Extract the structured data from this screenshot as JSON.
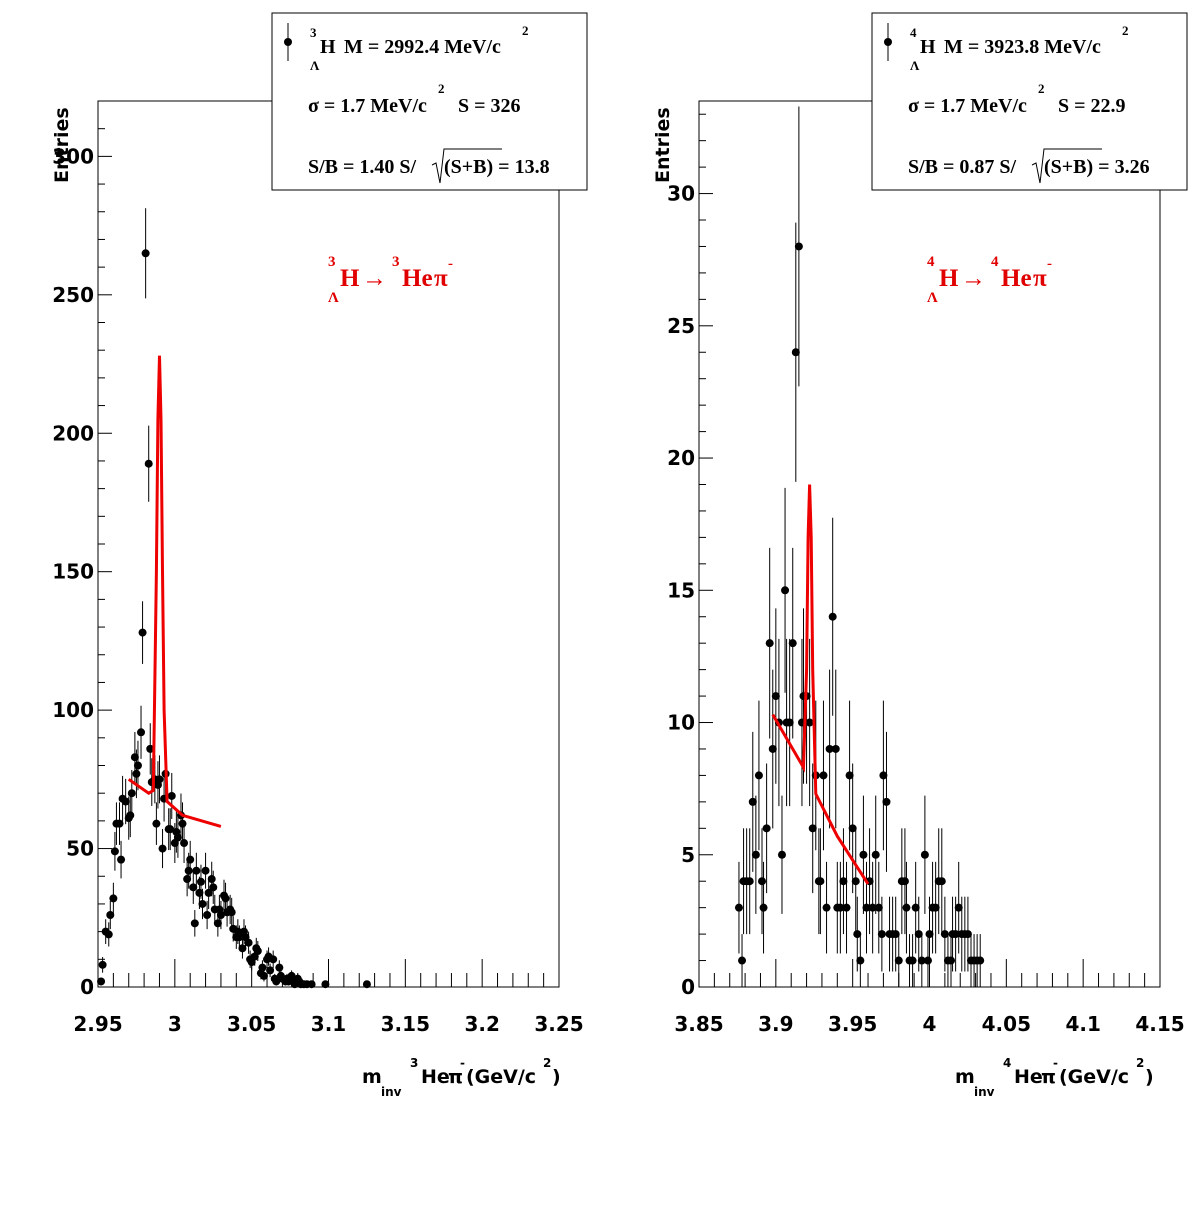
{
  "chart_data": [
    {
      "type": "scatter",
      "ylabel": "Entries",
      "xlabel": {
        "m": "m",
        "inv": "inv",
        "mass": "3",
        "he": "He",
        "pi": "π",
        "minus": "-",
        "unit": "(GeV/c",
        "unit_pow": "2",
        "unit_close": ")"
      },
      "xlim": [
        2.95,
        3.25
      ],
      "ylim": [
        0,
        320
      ],
      "xticks": [
        "2.95",
        "3",
        "3.05",
        "3.1",
        "3.15",
        "3.2",
        "3.25"
      ],
      "xtick_values": [
        2.95,
        3.0,
        3.05,
        3.1,
        3.15,
        3.2,
        3.25
      ],
      "yticks": [
        "0",
        "50",
        "100",
        "150",
        "200",
        "250",
        "300"
      ],
      "ytick_values": [
        0,
        50,
        100,
        150,
        200,
        250,
        300
      ],
      "reaction": {
        "a1": "3",
        "h": "H",
        "lambda": "Λ",
        "arrow": "→",
        "a2": "3",
        "he": "He",
        "pi": "π",
        "minus": "-"
      },
      "legend": {
        "mass_line": {
          "a": "3",
          "h": "H",
          "lambda": "Λ",
          "text": "M = 2992.4 MeV/c",
          "pow": "2"
        },
        "sigma_line": {
          "text": "σ = 1.7 MeV/c",
          "pow": "2",
          "s_text": "S =  326"
        },
        "sb_line": {
          "text": "S/B = 1.40  S/",
          "root": "(S+B) = 13.8"
        }
      },
      "points": [
        [
          2.952,
          2
        ],
        [
          2.953,
          8
        ],
        [
          2.955,
          20
        ],
        [
          2.957,
          19
        ],
        [
          2.958,
          26
        ],
        [
          2.96,
          32
        ],
        [
          2.961,
          49
        ],
        [
          2.962,
          59
        ],
        [
          2.964,
          59
        ],
        [
          2.965,
          46
        ],
        [
          2.966,
          68
        ],
        [
          2.968,
          67
        ],
        [
          2.97,
          61
        ],
        [
          2.971,
          62
        ],
        [
          2.972,
          70
        ],
        [
          2.974,
          83
        ],
        [
          2.975,
          77
        ],
        [
          2.976,
          80
        ],
        [
          2.978,
          92
        ],
        [
          2.979,
          128
        ],
        [
          2.981,
          265
        ],
        [
          2.983,
          189
        ],
        [
          2.984,
          86
        ],
        [
          2.985,
          74
        ],
        [
          2.987,
          75
        ],
        [
          2.988,
          59
        ],
        [
          2.989,
          73
        ],
        [
          2.99,
          75
        ],
        [
          2.992,
          50
        ],
        [
          2.993,
          68
        ],
        [
          2.994,
          77
        ],
        [
          2.996,
          57
        ],
        [
          2.997,
          57
        ],
        [
          2.998,
          69
        ],
        [
          3.0,
          52
        ],
        [
          3.001,
          56
        ],
        [
          3.002,
          54
        ],
        [
          3.004,
          62
        ],
        [
          3.005,
          59
        ],
        [
          3.006,
          52
        ],
        [
          3.008,
          39
        ],
        [
          3.009,
          42
        ],
        [
          3.01,
          46
        ],
        [
          3.012,
          36
        ],
        [
          3.013,
          23
        ],
        [
          3.014,
          42
        ],
        [
          3.016,
          34
        ],
        [
          3.017,
          38
        ],
        [
          3.018,
          30
        ],
        [
          3.02,
          42
        ],
        [
          3.021,
          26
        ],
        [
          3.022,
          34
        ],
        [
          3.024,
          39
        ],
        [
          3.025,
          36
        ],
        [
          3.026,
          28
        ],
        [
          3.028,
          23
        ],
        [
          3.029,
          28
        ],
        [
          3.03,
          26
        ],
        [
          3.032,
          33
        ],
        [
          3.033,
          32
        ],
        [
          3.034,
          27
        ],
        [
          3.036,
          28
        ],
        [
          3.037,
          27
        ],
        [
          3.038,
          21
        ],
        [
          3.04,
          18
        ],
        [
          3.041,
          20
        ],
        [
          3.042,
          18
        ],
        [
          3.044,
          14
        ],
        [
          3.045,
          20
        ],
        [
          3.046,
          18
        ],
        [
          3.048,
          16
        ],
        [
          3.049,
          10
        ],
        [
          3.05,
          9
        ],
        [
          3.052,
          11
        ],
        [
          3.053,
          14
        ],
        [
          3.054,
          13
        ],
        [
          3.056,
          5
        ],
        [
          3.057,
          7
        ],
        [
          3.058,
          4
        ],
        [
          3.06,
          10
        ],
        [
          3.061,
          11
        ],
        [
          3.062,
          6
        ],
        [
          3.064,
          10
        ],
        [
          3.065,
          3
        ],
        [
          3.066,
          2
        ],
        [
          3.068,
          7
        ],
        [
          3.069,
          4
        ],
        [
          3.07,
          3
        ],
        [
          3.072,
          2
        ],
        [
          3.073,
          3
        ],
        [
          3.074,
          2
        ],
        [
          3.076,
          4
        ],
        [
          3.077,
          2
        ],
        [
          3.078,
          1
        ],
        [
          3.08,
          3
        ],
        [
          3.081,
          2
        ],
        [
          3.082,
          1
        ],
        [
          3.084,
          1
        ],
        [
          3.086,
          1
        ],
        [
          3.089,
          1
        ],
        [
          3.098,
          1
        ],
        [
          3.125,
          1
        ]
      ],
      "points_xs_note": "",
      "fit_line": [
        [
          2.97,
          75
        ],
        [
          2.983,
          70
        ],
        [
          2.986,
          71
        ],
        [
          2.988,
          150
        ],
        [
          2.989,
          205
        ],
        [
          2.99,
          228
        ],
        [
          2.991,
          205
        ],
        [
          2.992,
          150
        ],
        [
          2.993,
          100
        ],
        [
          2.995,
          67
        ],
        [
          3.005,
          62
        ],
        [
          3.03,
          58
        ]
      ]
    },
    {
      "type": "scatter",
      "ylabel": "Entries",
      "xlabel": {
        "m": "m",
        "inv": "inv",
        "mass": "4",
        "he": "He",
        "pi": "π",
        "minus": "-",
        "unit": " (GeV/c",
        "unit_pow": "2",
        "unit_close": ")"
      },
      "xlim": [
        3.85,
        4.15
      ],
      "ylim": [
        0,
        33.5
      ],
      "xticks": [
        "3.85",
        "3.9",
        "3.95",
        "4",
        "4.05",
        "4.1",
        "4.15"
      ],
      "xtick_values": [
        3.85,
        3.9,
        3.95,
        4.0,
        4.05,
        4.1,
        4.15
      ],
      "yticks": [
        "0",
        "5",
        "10",
        "15",
        "20",
        "25",
        "30"
      ],
      "ytick_values": [
        0,
        5,
        10,
        15,
        20,
        25,
        30
      ],
      "reaction": {
        "a1": "4",
        "h": "H",
        "lambda": "Λ",
        "arrow": "→",
        "a2": "4",
        "he": "He",
        "pi": "π",
        "minus": "-"
      },
      "legend": {
        "mass_line": {
          "a": "4",
          "h": "H",
          "lambda": "Λ",
          "text": "M = 3923.8 MeV/c",
          "pow": "2"
        },
        "sigma_line": {
          "text": "σ = 1.7 MeV/c",
          "pow": "2",
          "s_text": "S = 22.9"
        },
        "sb_line": {
          "text": "S/B = 0.87  S/",
          "root": "(S+B) = 3.26"
        }
      },
      "points": [
        [
          3.876,
          3
        ],
        [
          3.878,
          1
        ],
        [
          3.879,
          4
        ],
        [
          3.881,
          4
        ],
        [
          3.883,
          4
        ],
        [
          3.885,
          7
        ],
        [
          3.887,
          5
        ],
        [
          3.889,
          8
        ],
        [
          3.891,
          4
        ],
        [
          3.892,
          3
        ],
        [
          3.894,
          6
        ],
        [
          3.896,
          13
        ],
        [
          3.898,
          9
        ],
        [
          3.9,
          11
        ],
        [
          3.902,
          10
        ],
        [
          3.904,
          5
        ],
        [
          3.906,
          15
        ],
        [
          3.907,
          10
        ],
        [
          3.909,
          10
        ],
        [
          3.911,
          13
        ],
        [
          3.913,
          24
        ],
        [
          3.915,
          28
        ],
        [
          3.917,
          10
        ],
        [
          3.918,
          11
        ],
        [
          3.92,
          11
        ],
        [
          3.922,
          10
        ],
        [
          3.924,
          6
        ],
        [
          3.926,
          8
        ],
        [
          3.928,
          4
        ],
        [
          3.929,
          4
        ],
        [
          3.931,
          8
        ],
        [
          3.933,
          3
        ],
        [
          3.935,
          9
        ],
        [
          3.937,
          14
        ],
        [
          3.939,
          9
        ],
        [
          3.94,
          3
        ],
        [
          3.942,
          3
        ],
        [
          3.944,
          4
        ],
        [
          3.946,
          3
        ],
        [
          3.948,
          8
        ],
        [
          3.95,
          6
        ],
        [
          3.952,
          4
        ],
        [
          3.953,
          2
        ],
        [
          3.955,
          1
        ],
        [
          3.957,
          5
        ],
        [
          3.959,
          3
        ],
        [
          3.961,
          4
        ],
        [
          3.963,
          3
        ],
        [
          3.965,
          5
        ],
        [
          3.967,
          3
        ],
        [
          3.969,
          2
        ],
        [
          3.97,
          8
        ],
        [
          3.972,
          7
        ],
        [
          3.974,
          2
        ],
        [
          3.976,
          2
        ],
        [
          3.978,
          2
        ],
        [
          3.98,
          1
        ],
        [
          3.982,
          4
        ],
        [
          3.984,
          4
        ],
        [
          3.985,
          3
        ],
        [
          3.987,
          1
        ],
        [
          3.989,
          1
        ],
        [
          3.991,
          3
        ],
        [
          3.993,
          2
        ],
        [
          3.995,
          1
        ],
        [
          3.997,
          5
        ],
        [
          3.999,
          1
        ],
        [
          4.0,
          2
        ],
        [
          4.002,
          3
        ],
        [
          4.004,
          3
        ],
        [
          4.006,
          4
        ],
        [
          4.008,
          4
        ],
        [
          4.01,
          2
        ],
        [
          4.012,
          1
        ],
        [
          4.014,
          1
        ],
        [
          4.015,
          2
        ],
        [
          4.017,
          2
        ],
        [
          4.019,
          3
        ],
        [
          4.021,
          2
        ],
        [
          4.023,
          2
        ],
        [
          4.025,
          2
        ],
        [
          4.027,
          1
        ],
        [
          4.029,
          1
        ],
        [
          4.031,
          1
        ],
        [
          4.033,
          1
        ]
      ],
      "fit_line": [
        [
          3.898,
          10.3
        ],
        [
          3.918,
          8.3
        ],
        [
          3.92,
          12
        ],
        [
          3.921,
          17
        ],
        [
          3.922,
          19
        ],
        [
          3.923,
          17
        ],
        [
          3.924,
          12
        ],
        [
          3.926,
          7.3
        ],
        [
          3.94,
          5.7
        ],
        [
          3.96,
          3.9
        ]
      ]
    }
  ]
}
